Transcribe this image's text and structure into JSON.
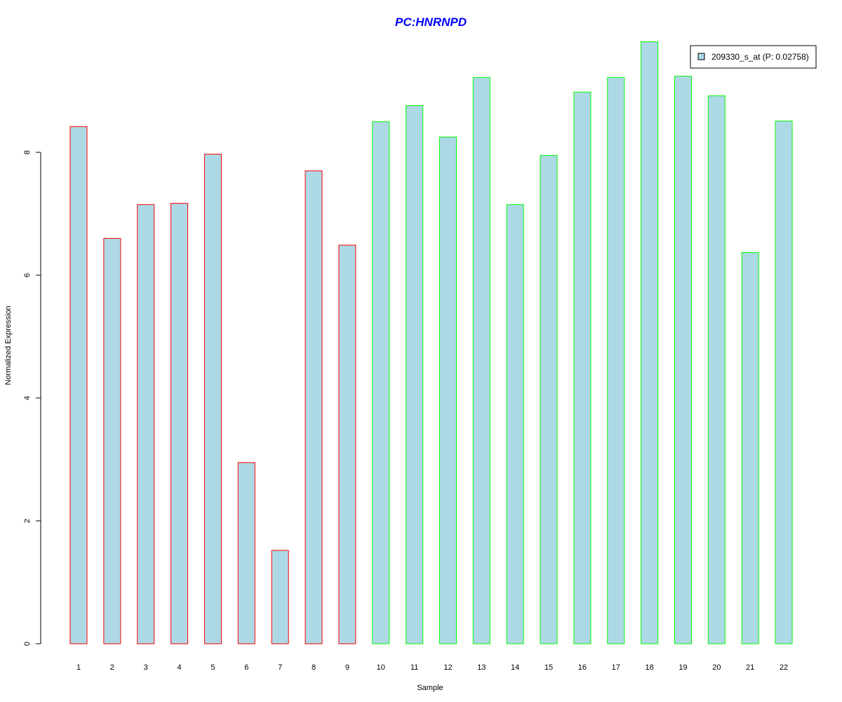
{
  "chart_data": {
    "type": "bar",
    "title": "PC:HNRNPD",
    "xlabel": "Sample",
    "ylabel": "Normalized Expression",
    "categories": [
      "1",
      "2",
      "3",
      "4",
      "5",
      "6",
      "7",
      "8",
      "9",
      "10",
      "11",
      "12",
      "13",
      "14",
      "15",
      "16",
      "17",
      "18",
      "19",
      "20",
      "21",
      "22"
    ],
    "series": [
      {
        "name": "209330_s_at (P: 0.02758)",
        "values": [
          8.42,
          6.6,
          7.15,
          7.17,
          7.97,
          2.95,
          1.52,
          7.7,
          6.49,
          8.5,
          8.76,
          8.25,
          9.22,
          7.15,
          7.95,
          8.98,
          9.22,
          9.8,
          9.24,
          8.92,
          6.37,
          8.51
        ]
      }
    ],
    "yticks": [
      0,
      2,
      4,
      6,
      8
    ],
    "ylim": [
      0,
      9.8
    ],
    "groups": [
      {
        "samples": [
          1,
          2,
          3,
          4,
          5,
          6,
          7,
          8,
          9
        ],
        "border_color": "#ff0000"
      },
      {
        "samples": [
          10,
          11,
          12,
          13,
          14,
          15,
          16,
          17,
          18,
          19,
          20,
          21,
          22
        ],
        "border_color": "#00ff00"
      }
    ],
    "legend_position": "top-right",
    "grid": false,
    "colors": {
      "bar_fill": "#add8e6",
      "title": "#0000ff",
      "axis": "#000000"
    }
  }
}
